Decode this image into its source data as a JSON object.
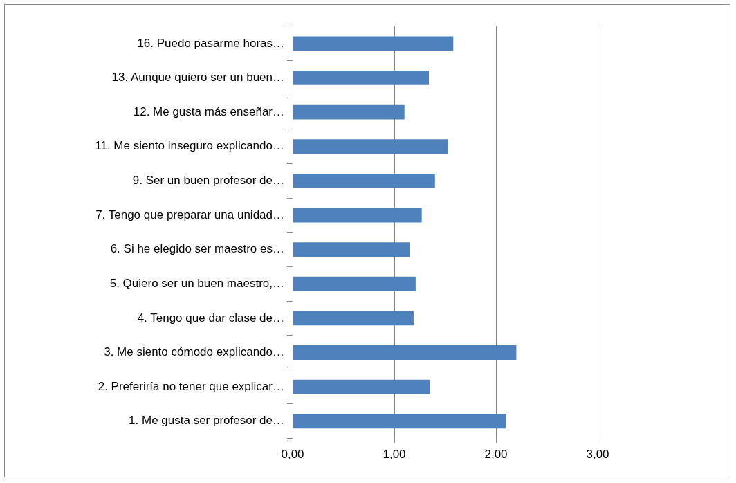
{
  "chart_data": {
    "type": "bar",
    "orientation": "horizontal",
    "categories": [
      "16. Puedo pasarme horas…",
      "13. Aunque quiero ser un buen…",
      "12. Me gusta más enseñar…",
      "11. Me siento inseguro explicando…",
      "9. Ser un buen profesor de…",
      "7. Tengo que preparar una unidad…",
      "6. Si he elegido ser maestro es…",
      "5. Quiero ser un buen maestro,…",
      "4. Tengo que dar clase de…",
      "3. Me siento cómodo explicando…",
      "2. Preferiría no tener que explicar…",
      "1. Me gusta ser profesor de…"
    ],
    "values": [
      1.58,
      1.34,
      1.1,
      1.53,
      1.4,
      1.27,
      1.15,
      1.21,
      1.19,
      2.2,
      1.35,
      2.1
    ],
    "color": "#4f81bd",
    "xlim": [
      0,
      3
    ],
    "xticks": [
      {
        "value": 0,
        "label": "0,00"
      },
      {
        "value": 1,
        "label": "1,00"
      },
      {
        "value": 2,
        "label": "2,00"
      },
      {
        "value": 3,
        "label": "3,00"
      }
    ],
    "grid": "x",
    "legend": false
  }
}
